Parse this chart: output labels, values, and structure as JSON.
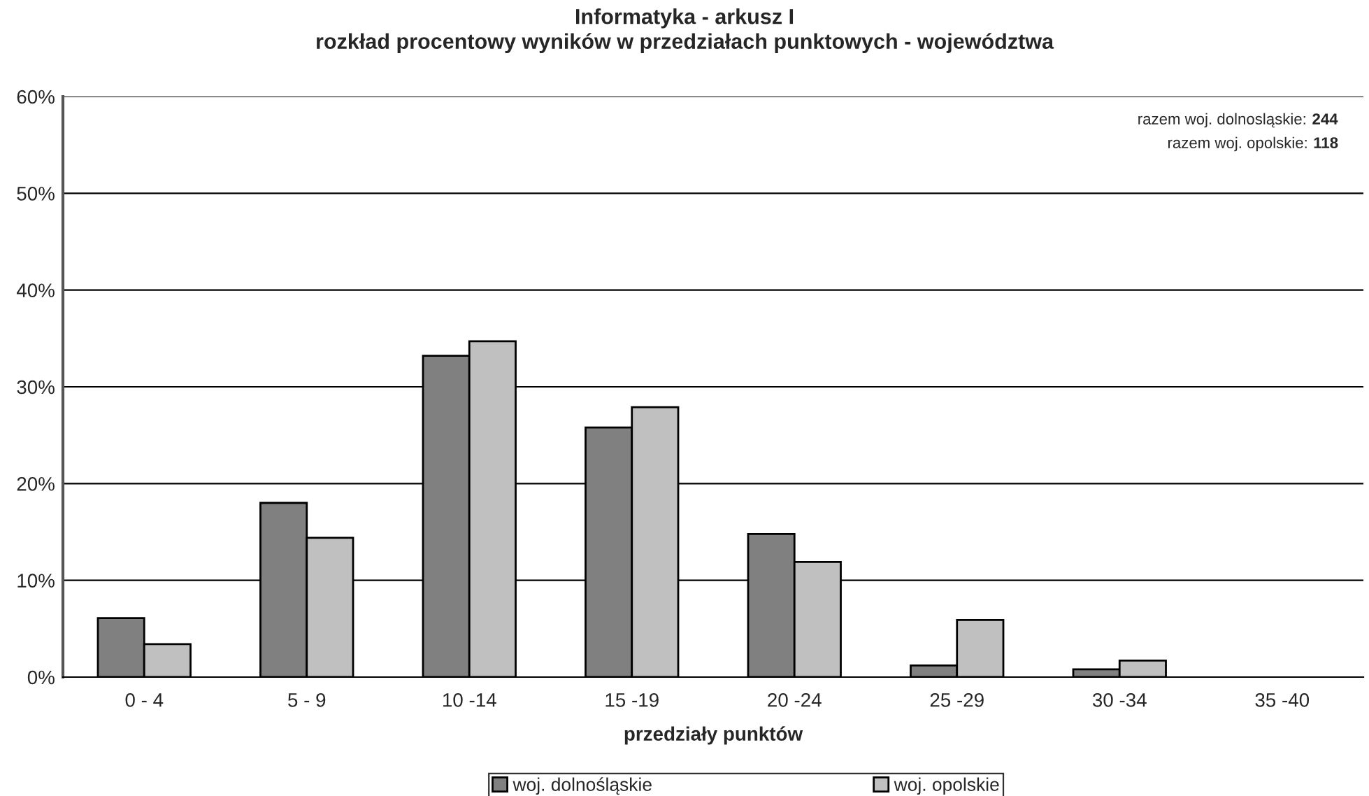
{
  "chart_data": {
    "type": "bar",
    "title": "Informatyka - arkusz I\nrozkład procentowy wyników w przedziałach punktowych - województwa",
    "xlabel": "przedziały punktów",
    "categories": [
      "0 - 4",
      "5 - 9",
      "10 -14",
      "15 -19",
      "20 -24",
      "25 -29",
      "30 -34",
      "35 -40"
    ],
    "series": [
      {
        "name": "woj. dolnośląskie",
        "color": "#808080",
        "values": [
          6.1,
          18.0,
          33.2,
          25.8,
          14.8,
          1.2,
          0.8,
          0
        ]
      },
      {
        "name": "woj. opolskie",
        "color": "#c0c0c0",
        "values": [
          3.4,
          14.4,
          34.7,
          27.9,
          11.9,
          5.9,
          1.7,
          0
        ]
      }
    ],
    "ylim": [
      0,
      60
    ],
    "yticks": [
      {
        "value": 0,
        "label": "0%"
      },
      {
        "value": 10,
        "label": "10%"
      },
      {
        "value": 20,
        "label": "20%"
      },
      {
        "value": 30,
        "label": "30%"
      },
      {
        "value": 40,
        "label": "40%"
      },
      {
        "value": 50,
        "label": "50%"
      },
      {
        "value": 60,
        "label": "60%"
      }
    ],
    "grid": "y",
    "legend": "bottom",
    "annotations": [
      "razem woj. dolnosląskie: 244",
      "razem woj. opolskie: 118"
    ]
  }
}
